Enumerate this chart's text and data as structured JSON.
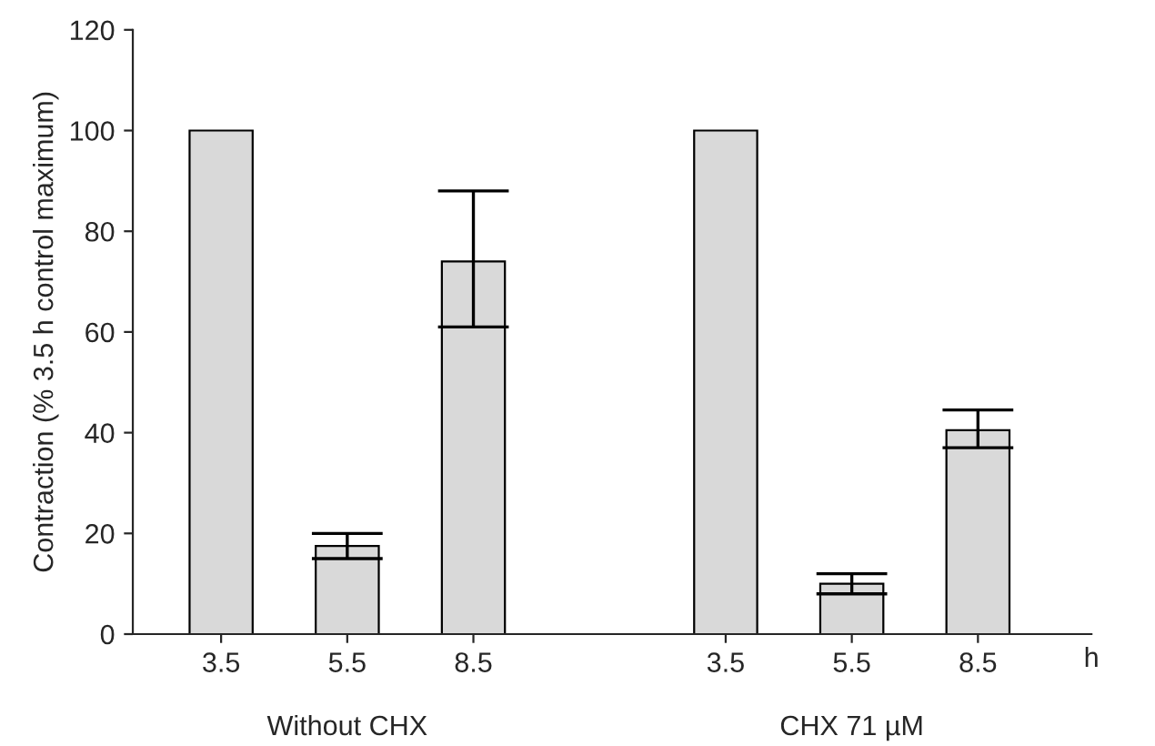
{
  "chart_data": {
    "type": "bar",
    "ylabel": "Contraction (% 3.5 h control maximum)",
    "categories": [
      "3.5",
      "5.5",
      "8.5",
      null,
      "3.5",
      "5.5",
      "8.5"
    ],
    "values": [
      100,
      17.5,
      74,
      null,
      100,
      10,
      40.5
    ],
    "errors": [
      null,
      [
        15,
        20
      ],
      [
        61,
        88
      ],
      null,
      null,
      [
        8,
        12
      ],
      [
        37,
        44.5
      ]
    ],
    "color": "#d9d9d9",
    "ylim": [
      0,
      120
    ],
    "yticks": [
      0,
      20,
      40,
      60,
      80,
      100,
      120
    ],
    "grid": false,
    "annotations": [
      "Without CHX",
      "CHX 71 µM",
      "h"
    ]
  }
}
